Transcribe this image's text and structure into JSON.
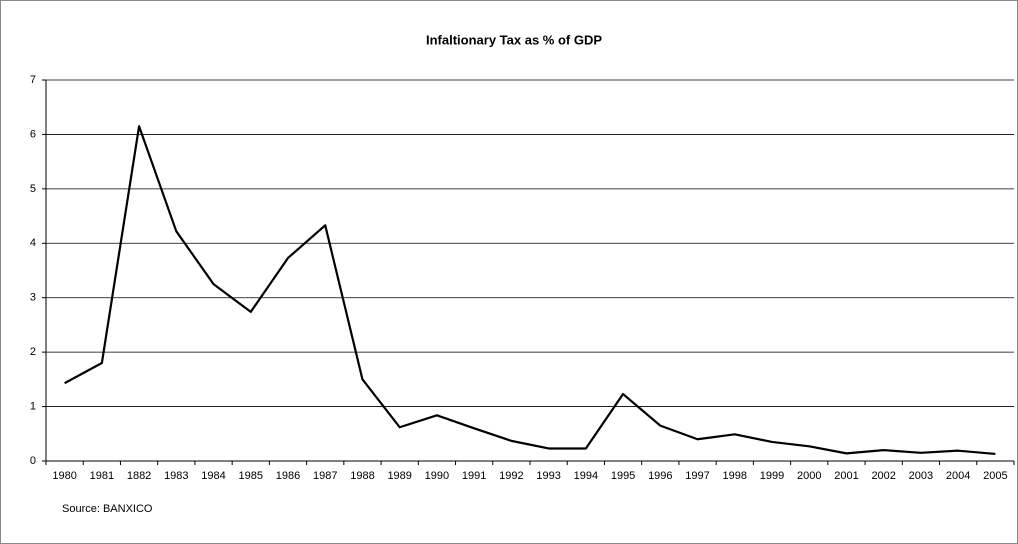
{
  "chart_data": {
    "type": "line",
    "title": "Infaltionary Tax as % of GDP",
    "categories": [
      "1980",
      "1981",
      "1882",
      "1983",
      "1984",
      "1985",
      "1986",
      "1987",
      "1988",
      "1989",
      "1990",
      "1991",
      "1992",
      "1993",
      "1994",
      "1995",
      "1996",
      "1997",
      "1998",
      "1999",
      "2000",
      "2001",
      "2002",
      "2003",
      "2004",
      "2005"
    ],
    "series": [
      {
        "color": "#000000",
        "values": [
          1.43,
          1.8,
          6.15,
          4.22,
          3.25,
          2.74,
          3.73,
          4.33,
          1.5,
          0.62,
          0.84,
          0.6,
          0.37,
          0.23,
          0.23,
          1.23,
          0.65,
          0.4,
          0.49,
          0.35,
          0.27,
          0.14,
          0.2,
          0.15,
          0.19,
          0.13
        ]
      }
    ],
    "ylim": [
      0,
      7
    ],
    "yticks": [
      0,
      1,
      2,
      3,
      4,
      5,
      6,
      7
    ],
    "grid": true,
    "source": "Source: BANXICO"
  }
}
